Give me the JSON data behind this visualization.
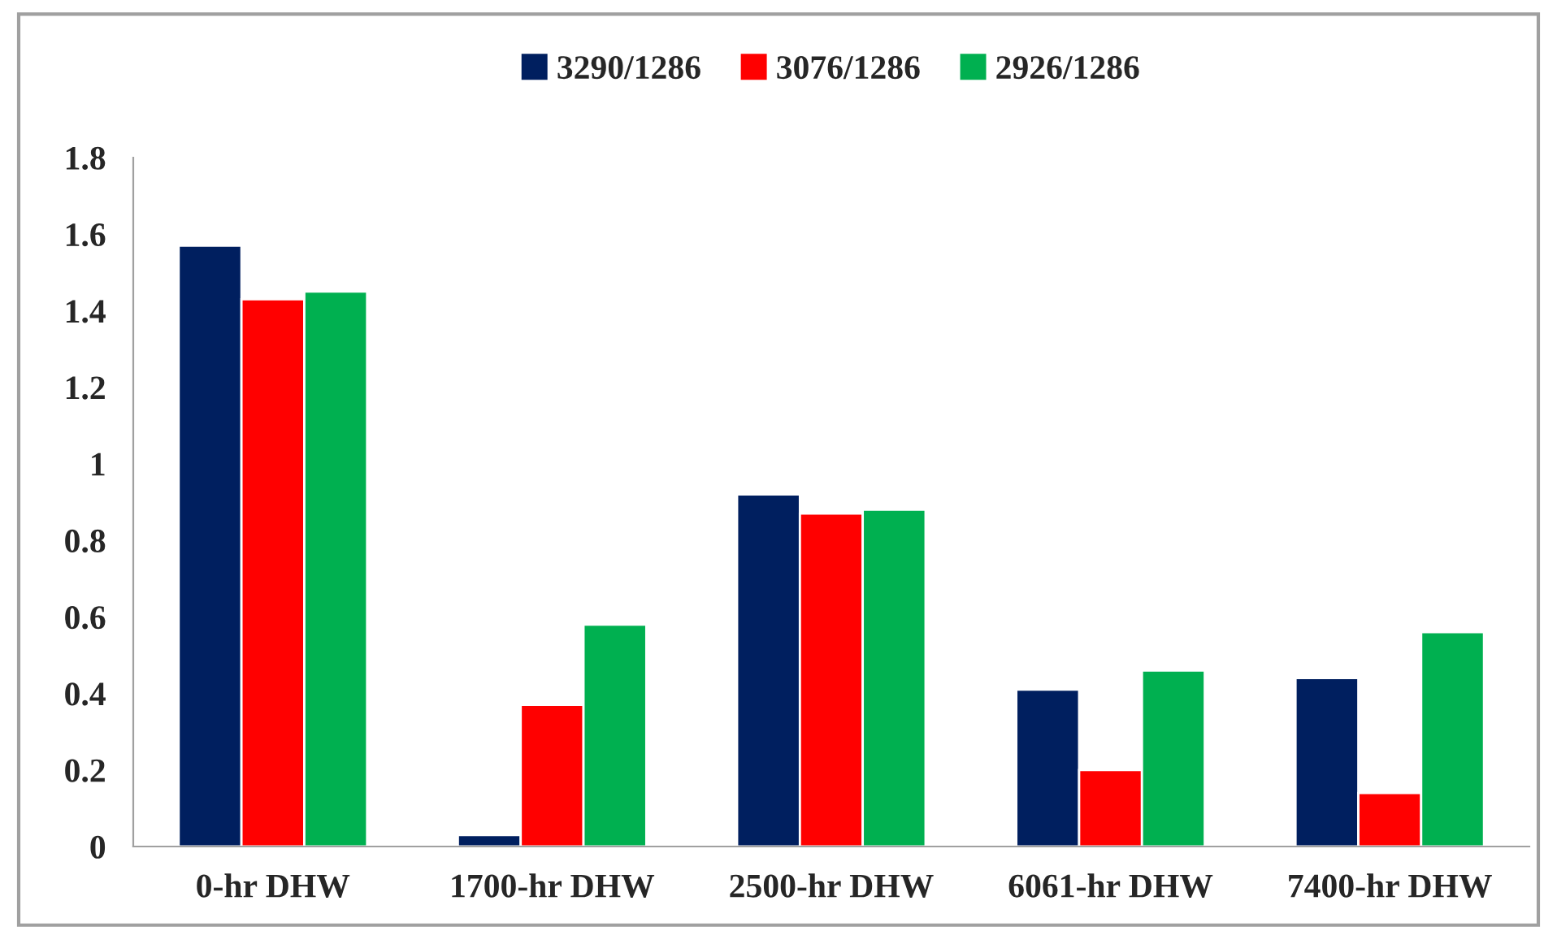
{
  "chart_data": {
    "type": "bar",
    "categories": [
      "0-hr DHW",
      "1700-hr DHW",
      "2500-hr DHW",
      "6061-hr DHW",
      "7400-hr DHW"
    ],
    "series": [
      {
        "name": "3290/1286",
        "color": "#001f5f",
        "values": [
          1.57,
          0.03,
          0.92,
          0.41,
          0.44
        ]
      },
      {
        "name": "3076/1286",
        "color": "#ff0000",
        "values": [
          1.43,
          0.37,
          0.87,
          0.2,
          0.14
        ]
      },
      {
        "name": "2926/1286",
        "color": "#00b050",
        "values": [
          1.45,
          0.58,
          0.88,
          0.46,
          0.56
        ]
      }
    ],
    "ylim": [
      0,
      1.8
    ],
    "yticks": [
      0,
      0.2,
      0.4,
      0.6,
      0.8,
      1,
      1.2,
      1.4,
      1.6,
      1.8
    ],
    "grid": false,
    "legend": "top"
  }
}
